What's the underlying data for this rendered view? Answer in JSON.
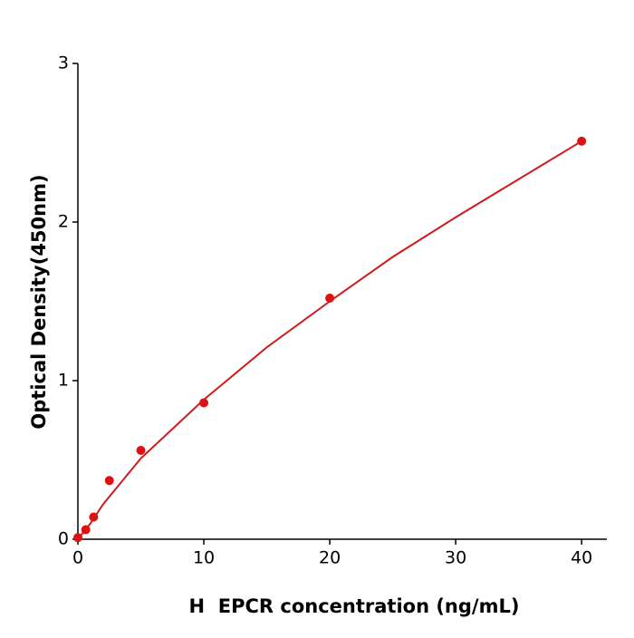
{
  "chart_data": {
    "type": "scatter",
    "x_label": "H  EPCR concentration (ng/mL)",
    "y_label": "Optical Density(450nm)",
    "xlim": [
      0,
      42
    ],
    "xticks": [
      0,
      10,
      20,
      30,
      40
    ],
    "ylim": [
      0,
      3
    ],
    "yticks": [
      0,
      1,
      2,
      3
    ],
    "series": [
      {
        "type": "scatter",
        "color": "#e00f12",
        "x": [
          0,
          0.625,
          1.25,
          2.5,
          5,
          10,
          20,
          40
        ],
        "values": [
          0.01,
          0.06,
          0.14,
          0.37,
          0.56,
          0.86,
          1.52,
          2.51
        ]
      },
      {
        "type": "line",
        "color": "#d01a1a",
        "x": [
          0,
          1,
          2,
          5,
          10,
          15,
          20,
          25,
          30,
          35,
          40
        ],
        "values": [
          0,
          0.1,
          0.22,
          0.51,
          0.88,
          1.21,
          1.5,
          1.78,
          2.03,
          2.27,
          2.51
        ]
      }
    ]
  }
}
